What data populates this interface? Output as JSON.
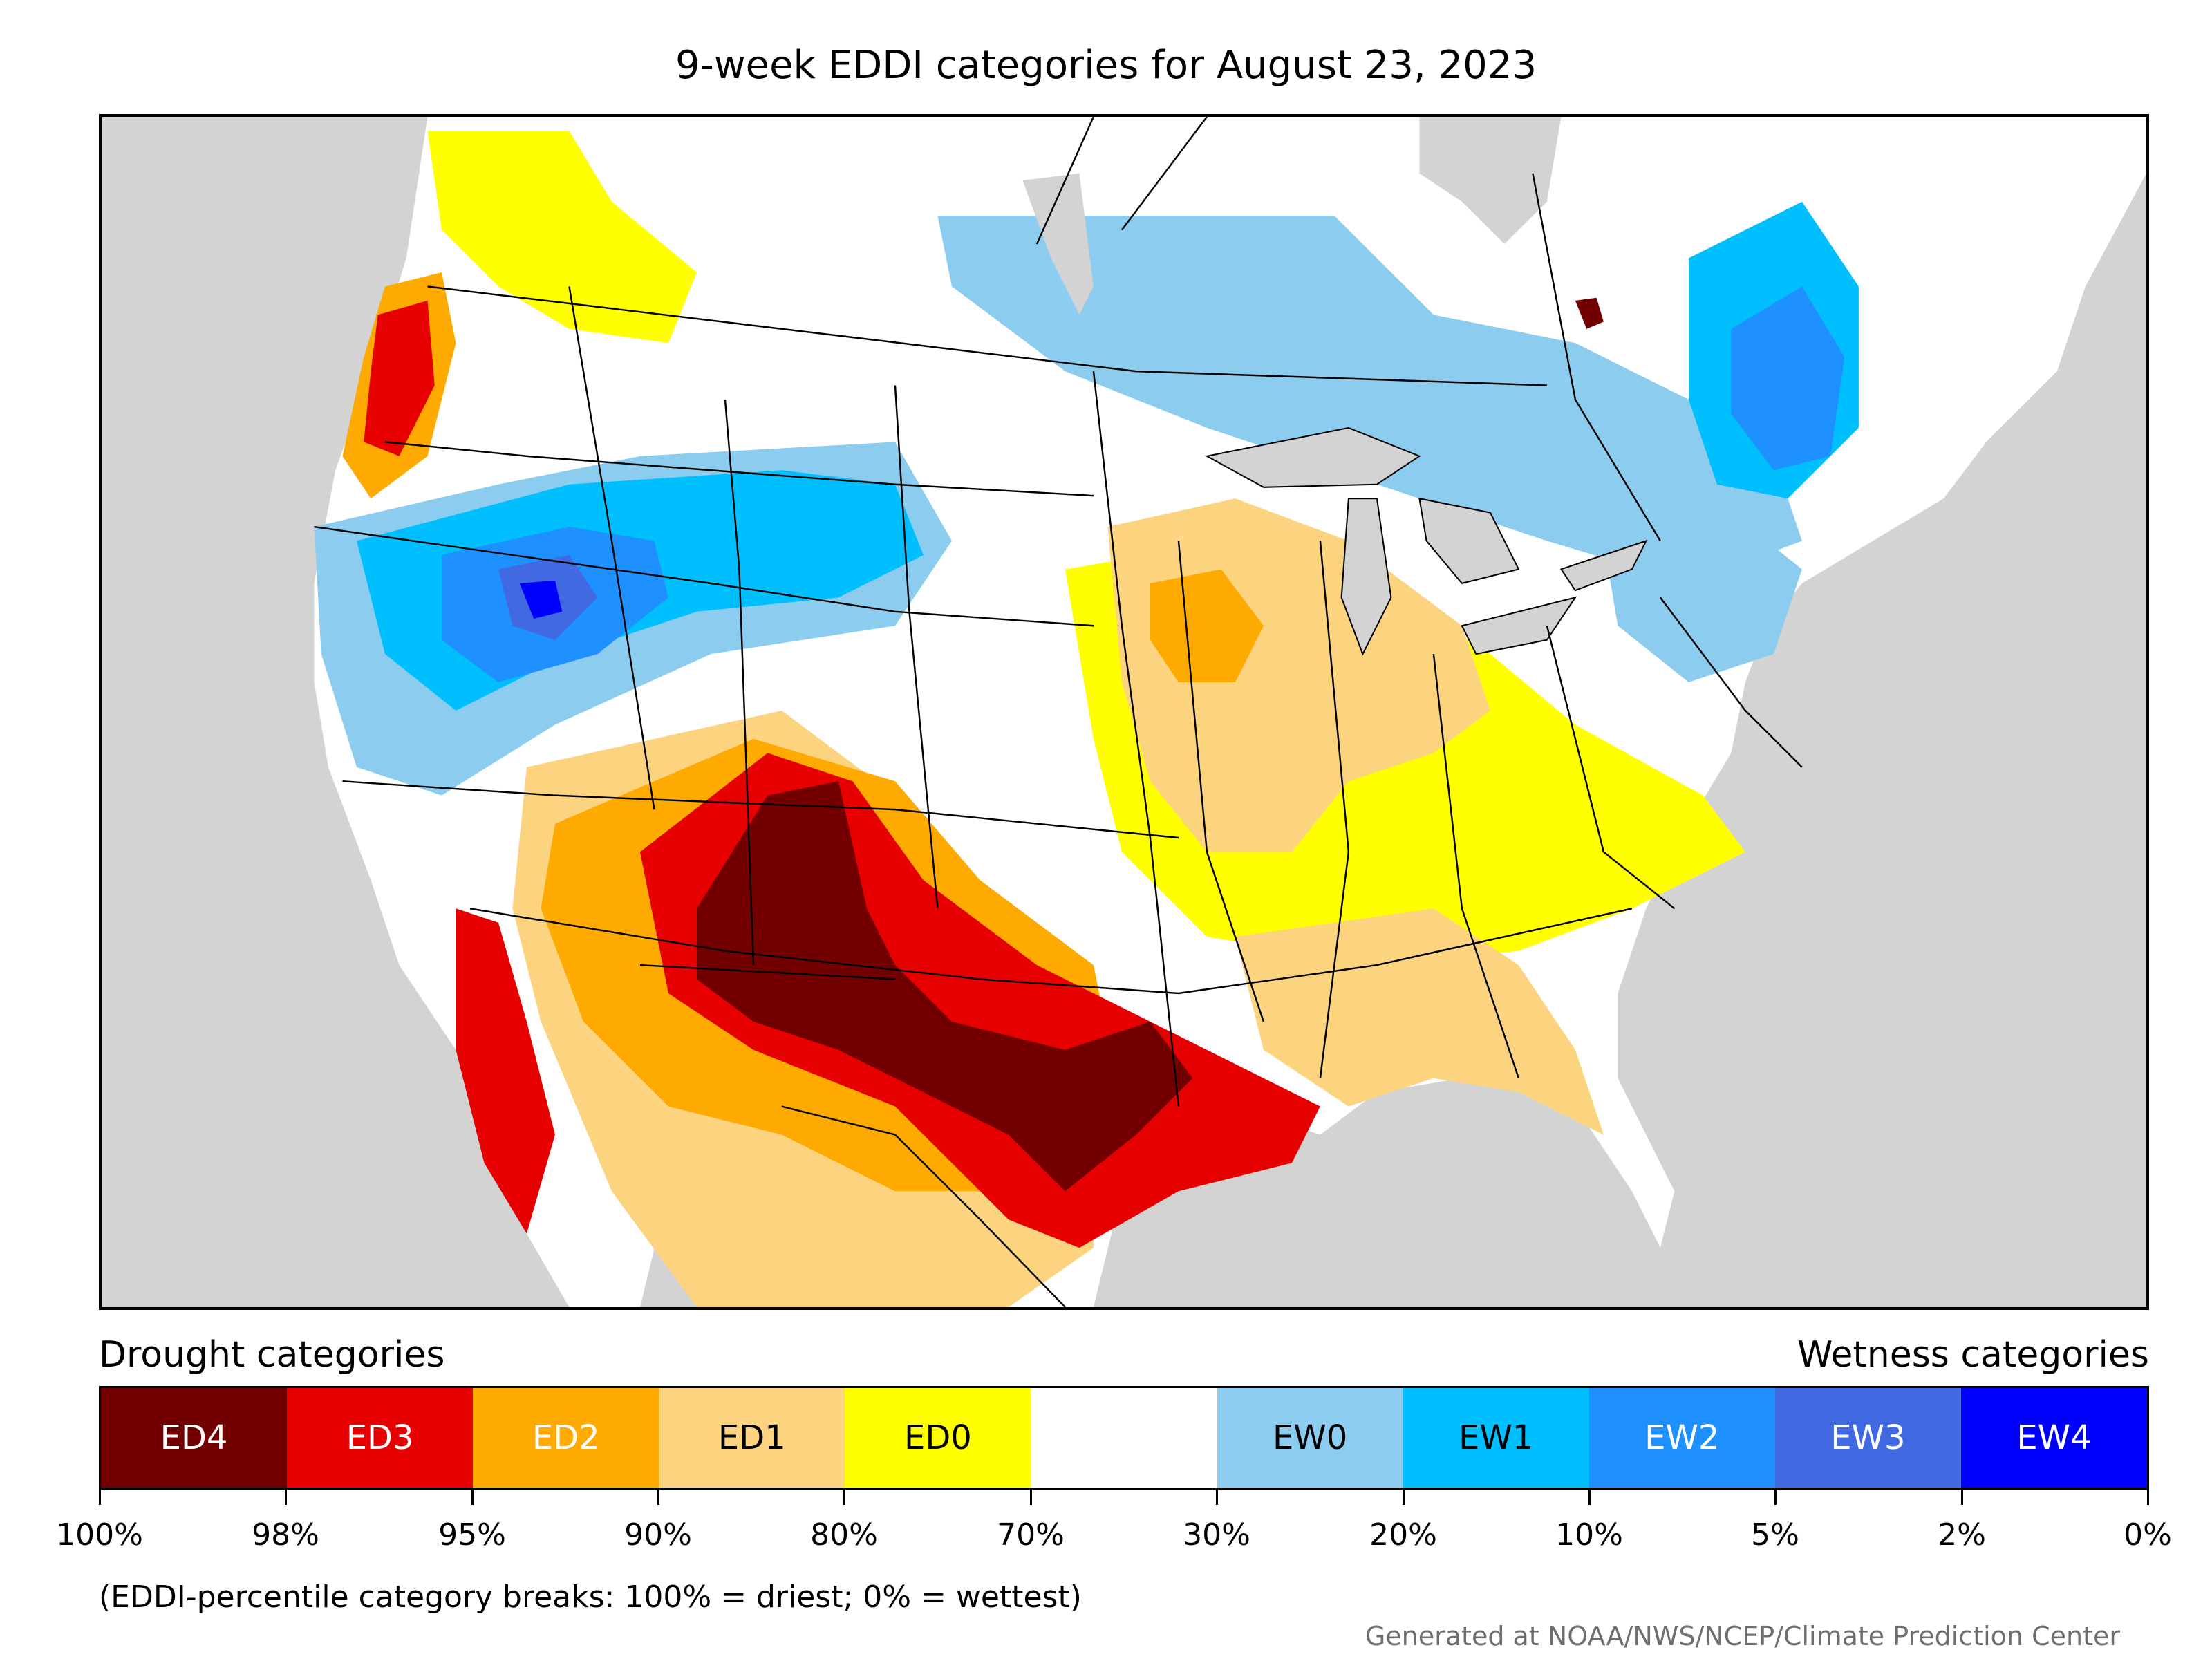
{
  "title": "9-week EDDI categories for August 23, 2023",
  "legend": {
    "drought_heading": "Drought categories",
    "wetness_heading": "Wetness categories",
    "categories": [
      {
        "label": "ED4",
        "color": "#730000",
        "text_color": "#ffffff"
      },
      {
        "label": "ED3",
        "color": "#e60000",
        "text_color": "#ffffff"
      },
      {
        "label": "ED2",
        "color": "#ffaa00",
        "text_color": "#ffffff"
      },
      {
        "label": "ED1",
        "color": "#fcd37f",
        "text_color": "#000000"
      },
      {
        "label": "ED0",
        "color": "#ffff00",
        "text_color": "#000000"
      },
      {
        "label": "",
        "color": "#ffffff",
        "text_color": "#000000"
      },
      {
        "label": "EW0",
        "color": "#8ccdef",
        "text_color": "#000000"
      },
      {
        "label": "EW1",
        "color": "#00bfff",
        "text_color": "#000000"
      },
      {
        "label": "EW2",
        "color": "#1e90ff",
        "text_color": "#ffffff"
      },
      {
        "label": "EW3",
        "color": "#4169e1",
        "text_color": "#ffffff"
      },
      {
        "label": "EW4",
        "color": "#0000ff",
        "text_color": "#ffffff"
      }
    ],
    "tick_labels": [
      "100%",
      "98%",
      "95%",
      "90%",
      "80%",
      "70%",
      "30%",
      "20%",
      "10%",
      "5%",
      "2%",
      "0%"
    ]
  },
  "note": "(EDDI-percentile category breaks: 100% = driest; 0% = wettest)",
  "credit": "Generated at NOAA/NWS/NCEP/Climate Prediction Center",
  "map": {
    "background_color": "#d3d3d3",
    "water_color": "#d3d3d3"
  }
}
